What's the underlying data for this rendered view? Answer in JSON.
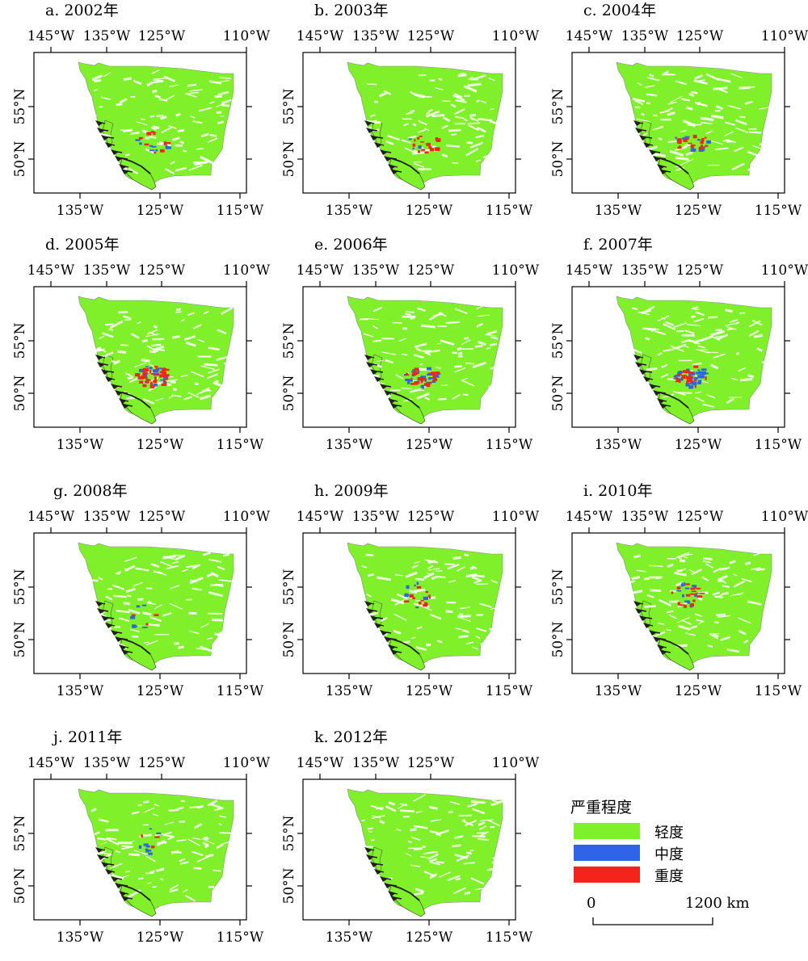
{
  "colors": {
    "light": "#7FF02A",
    "moderate": "#2F63E8",
    "severe": "#F2241C",
    "coast": "#1f1f1f"
  },
  "panels": [
    {
      "title": "a. 2002年",
      "blue": 3,
      "red": 3,
      "spots": "central"
    },
    {
      "title": "b. 2003年",
      "blue": 1,
      "red": 5,
      "spots": "central"
    },
    {
      "title": "c. 2004年",
      "blue": 5,
      "red": 6,
      "spots": "central"
    },
    {
      "title": "d. 2005年",
      "blue": 7,
      "red": 14,
      "spots": "central"
    },
    {
      "title": "e. 2006年",
      "blue": 10,
      "red": 10,
      "spots": "central"
    },
    {
      "title": "f. 2007年",
      "blue": 12,
      "red": 7,
      "spots": "central"
    },
    {
      "title": "g. 2008年",
      "blue": 2,
      "red": 1,
      "spots": "sparse"
    },
    {
      "title": "h. 2009年",
      "blue": 2,
      "red": 4,
      "spots": "north"
    },
    {
      "title": "i. 2010年",
      "blue": 4,
      "red": 6,
      "spots": "north"
    },
    {
      "title": "j. 2011年",
      "blue": 3,
      "red": 1,
      "spots": "north"
    },
    {
      "title": "k. 2012年",
      "blue": 0,
      "red": 0,
      "spots": "none"
    }
  ],
  "axes": {
    "top_ticks": [
      "145°W",
      "135°W",
      "125°W",
      "110°W"
    ],
    "bottom_ticks": [
      "135°W",
      "125°W",
      "115°W"
    ],
    "lat_ticks": [
      "55°N",
      "50°N"
    ]
  },
  "legend": {
    "title": "严重程度",
    "items": [
      {
        "label": "轻度",
        "color": "#7FF02A"
      },
      {
        "label": "中度",
        "color": "#2F63E8"
      },
      {
        "label": "重度",
        "color": "#F2241C"
      }
    ]
  },
  "scale_bar": {
    "start": "0",
    "end": "1200 km"
  }
}
